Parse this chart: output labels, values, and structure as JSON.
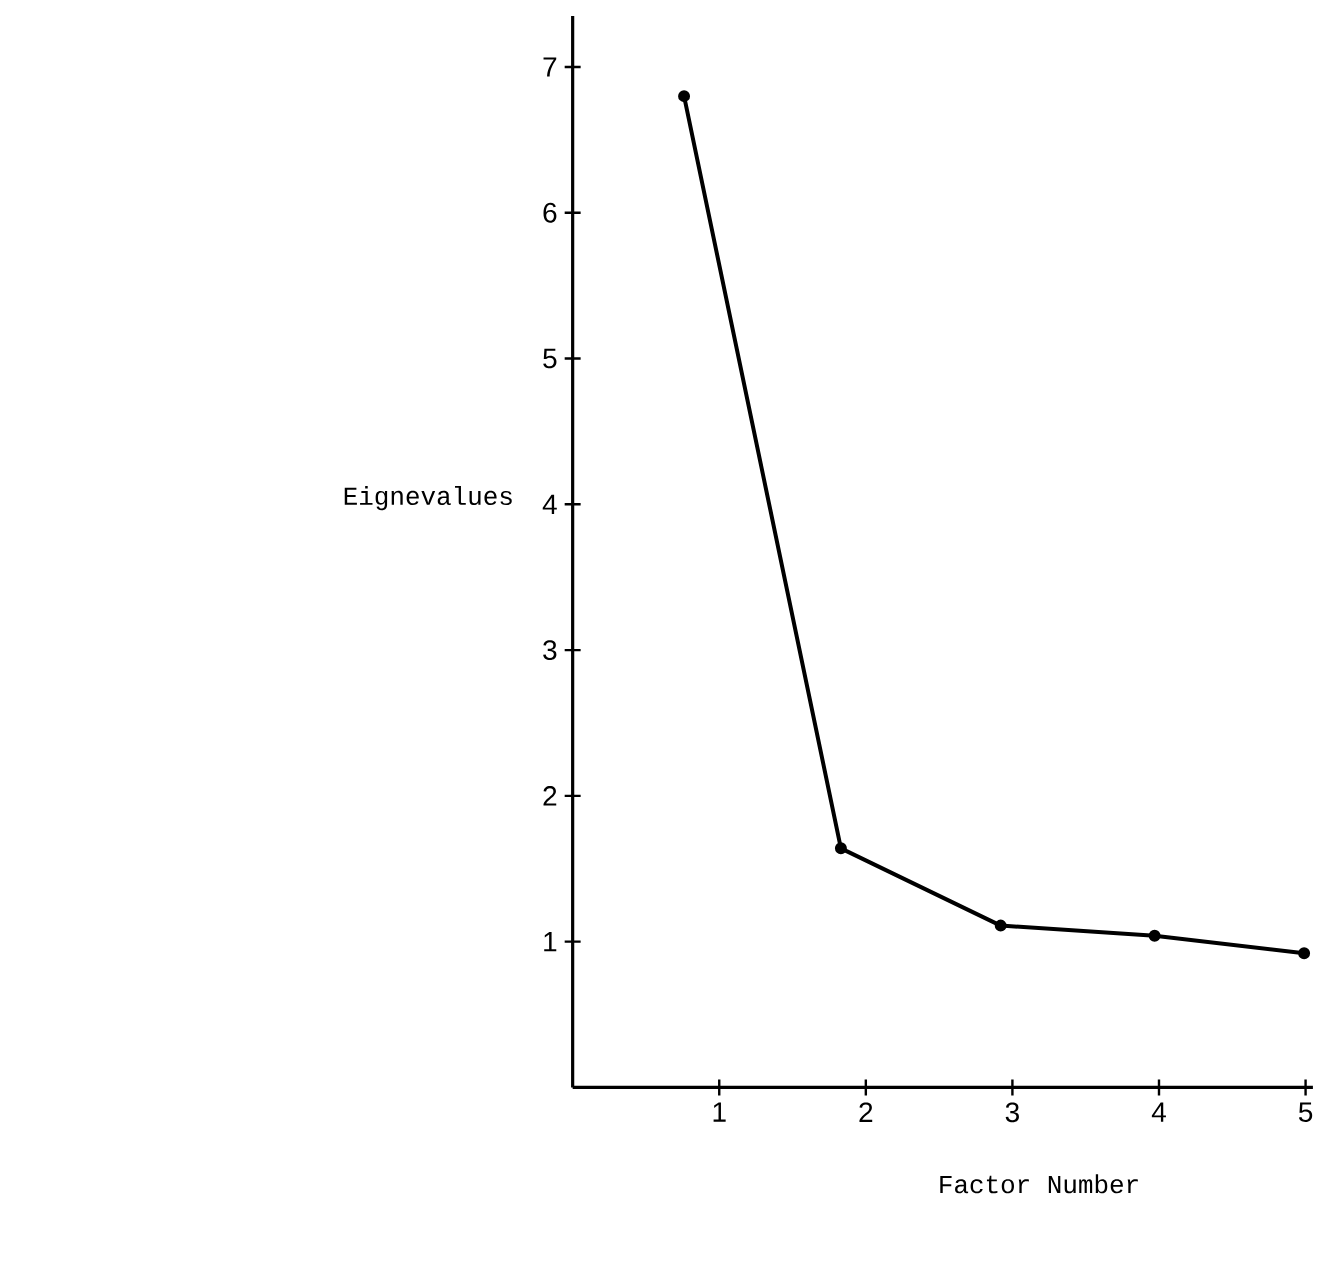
{
  "chart_data": {
    "type": "line",
    "xlabel": "Factor Number",
    "ylabel": "Eignevalues",
    "x": [
      0.76,
      1.83,
      2.92,
      3.97,
      4.99
    ],
    "values": [
      6.8,
      1.64,
      1.11,
      1.04,
      0.92
    ],
    "color": "#000000",
    "marker": "circle",
    "line_style": "solid",
    "xlim": [
      0,
      5.05
    ],
    "ylim": [
      0,
      7.35
    ],
    "xticks": [
      1,
      2,
      3,
      4,
      5
    ],
    "yticks": [
      1,
      2,
      3,
      4,
      5,
      6,
      7
    ]
  }
}
